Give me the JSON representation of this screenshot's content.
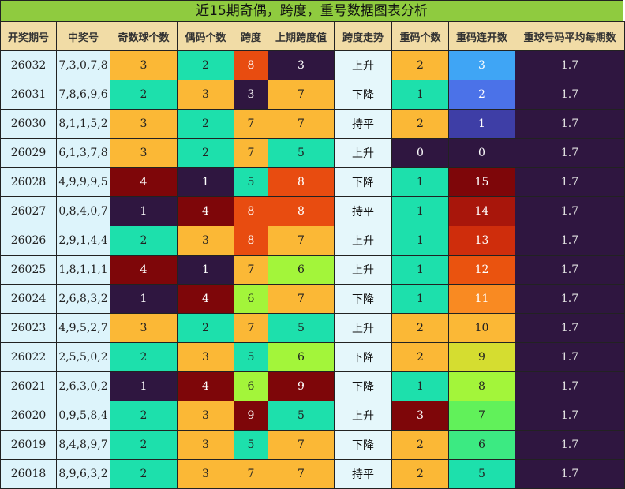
{
  "title": "近15期奇偶，跨度，重号数据图表分析",
  "headers": [
    "开奖期号",
    "中奖号",
    "奇数球个数",
    "偶码个数",
    "跨度",
    "上期跨度值",
    "跨度走势",
    "重码个数",
    "重码连开数",
    "重球号码平均每期数"
  ],
  "colors": {
    "title_bg": "#8fcb3f",
    "header_bg": "#f1dca6",
    "count_1": "#2f1640",
    "count_2": "#1de0ac",
    "count_3": "#fbb836",
    "count_4": "#7e0609",
    "span_3": "#2f1640",
    "span_5": "#1de0ac",
    "span_6": "#a3f53a",
    "span_7": "#fbb836",
    "span_8": "#e84c10",
    "span_9": "#7e0609",
    "repeat_0": "#2f1640",
    "repeat_1": "#1de0ac",
    "repeat_2": "#fbb836",
    "repeat_3": "#7e0609"
  },
  "rows": [
    {
      "period": "26032",
      "numbers": "7,3,0,7,8",
      "odd": "3",
      "even": "2",
      "span": "8",
      "prev_span": "3",
      "trend": "上升",
      "repeat": "2",
      "streak": "3",
      "avg": "1.7",
      "streak_color": "#3fa5f5"
    },
    {
      "period": "26031",
      "numbers": "7,8,6,9,6",
      "odd": "2",
      "even": "3",
      "span": "3",
      "prev_span": "7",
      "trend": "下降",
      "repeat": "1",
      "streak": "2",
      "avg": "1.7",
      "streak_color": "#4b72e8"
    },
    {
      "period": "26030",
      "numbers": "8,1,1,5,2",
      "odd": "3",
      "even": "2",
      "span": "7",
      "prev_span": "7",
      "trend": "持平",
      "repeat": "2",
      "streak": "1",
      "avg": "1.7",
      "streak_color": "#3e3ea6"
    },
    {
      "period": "26029",
      "numbers": "6,1,3,7,8",
      "odd": "3",
      "even": "2",
      "span": "7",
      "prev_span": "5",
      "trend": "上升",
      "repeat": "0",
      "streak": "0",
      "avg": "1.7",
      "streak_color": "#2f1640"
    },
    {
      "period": "26028",
      "numbers": "4,9,9,9,5",
      "odd": "4",
      "even": "1",
      "span": "5",
      "prev_span": "8",
      "trend": "下降",
      "repeat": "1",
      "streak": "15",
      "avg": "1.7",
      "streak_color": "#7e0609"
    },
    {
      "period": "26027",
      "numbers": "0,8,4,0,7",
      "odd": "1",
      "even": "4",
      "span": "8",
      "prev_span": "8",
      "trend": "持平",
      "repeat": "1",
      "streak": "14",
      "avg": "1.7",
      "streak_color": "#a8160b"
    },
    {
      "period": "26026",
      "numbers": "2,9,1,4,4",
      "odd": "2",
      "even": "3",
      "span": "8",
      "prev_span": "7",
      "trend": "上升",
      "repeat": "1",
      "streak": "13",
      "avg": "1.7",
      "streak_color": "#cf2d0c"
    },
    {
      "period": "26025",
      "numbers": "1,8,1,1,1",
      "odd": "4",
      "even": "1",
      "span": "7",
      "prev_span": "6",
      "trend": "上升",
      "repeat": "1",
      "streak": "12",
      "avg": "1.7",
      "streak_color": "#ea530f"
    },
    {
      "period": "26024",
      "numbers": "2,6,8,3,2",
      "odd": "1",
      "even": "4",
      "span": "6",
      "prev_span": "7",
      "trend": "下降",
      "repeat": "1",
      "streak": "11",
      "avg": "1.7",
      "streak_color": "#f98a22"
    },
    {
      "period": "26023",
      "numbers": "4,9,5,2,7",
      "odd": "3",
      "even": "2",
      "span": "7",
      "prev_span": "5",
      "trend": "上升",
      "repeat": "2",
      "streak": "10",
      "avg": "1.7",
      "streak_color": "#fbb836"
    },
    {
      "period": "26022",
      "numbers": "2,5,5,0,2",
      "odd": "2",
      "even": "3",
      "span": "5",
      "prev_span": "6",
      "trend": "下降",
      "repeat": "2",
      "streak": "9",
      "avg": "1.7",
      "streak_color": "#d5dd30"
    },
    {
      "period": "26021",
      "numbers": "2,6,3,0,2",
      "odd": "1",
      "even": "4",
      "span": "6",
      "prev_span": "9",
      "trend": "下降",
      "repeat": "1",
      "streak": "8",
      "avg": "1.7",
      "streak_color": "#a3f53a"
    },
    {
      "period": "26020",
      "numbers": "0,9,5,8,4",
      "odd": "2",
      "even": "3",
      "span": "9",
      "prev_span": "5",
      "trend": "上升",
      "repeat": "3",
      "streak": "7",
      "avg": "1.7",
      "streak_color": "#61f15a"
    },
    {
      "period": "26019",
      "numbers": "8,4,8,9,7",
      "odd": "2",
      "even": "3",
      "span": "5",
      "prev_span": "7",
      "trend": "下降",
      "repeat": "2",
      "streak": "6",
      "avg": "1.7",
      "streak_color": "#3cea82"
    },
    {
      "period": "26018",
      "numbers": "8,9,6,3,2",
      "odd": "2",
      "even": "3",
      "span": "7",
      "prev_span": "7",
      "trend": "持平",
      "repeat": "2",
      "streak": "5",
      "avg": "1.7",
      "streak_color": "#1de0ac"
    }
  ]
}
